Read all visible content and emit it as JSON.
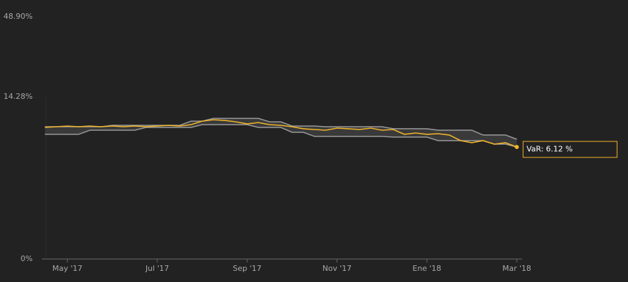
{
  "chart_data": {
    "type": "line",
    "x": [
      -0.5,
      -0.25,
      0,
      0.25,
      0.5,
      0.75,
      1,
      1.25,
      1.5,
      1.75,
      2,
      2.25,
      2.5,
      2.75,
      3,
      3.25,
      3.5,
      3.75,
      4,
      4.25,
      4.5,
      4.75,
      5,
      5.25,
      5.5,
      5.75,
      6,
      6.25,
      6.5,
      6.75,
      7,
      7.25,
      7.5,
      7.75,
      8,
      8.25,
      8.5,
      8.75,
      9,
      9.25,
      9.5,
      9.75,
      10
    ],
    "xlim": [
      -0.57,
      10.12
    ],
    "xticks": [
      {
        "value": 0,
        "label": "May '17"
      },
      {
        "value": 2,
        "label": "Jul '17"
      },
      {
        "value": 4,
        "label": "Sep '17"
      },
      {
        "value": 6,
        "label": "Nov '17"
      },
      {
        "value": 8,
        "label": "Ene '18"
      },
      {
        "value": 10,
        "label": "Mar '18"
      }
    ],
    "ylim": [
      0,
      48.9
    ],
    "yticks": [
      {
        "value": 0,
        "label": "0%"
      },
      {
        "value": 14.28,
        "label": "14.28%"
      },
      {
        "value": 48.9,
        "label": "48.90%"
      }
    ],
    "yscale": "log",
    "band_fill": "#3a3a3a",
    "series": [
      {
        "color": "#f0b429",
        "values": [
          8.62,
          8.72,
          8.82,
          8.72,
          8.82,
          8.72,
          8.82,
          8.72,
          8.82,
          8.72,
          8.82,
          8.93,
          8.82,
          9.03,
          9.58,
          9.81,
          9.7,
          9.47,
          9.15,
          9.36,
          9.03,
          8.93,
          8.72,
          8.42,
          8.32,
          8.22,
          8.52,
          8.42,
          8.32,
          8.52,
          8.22,
          8.32,
          7.65,
          7.83,
          7.65,
          7.74,
          7.56,
          6.85,
          6.61,
          6.85,
          6.44,
          6.61,
          6.12
        ]
      },
      {
        "color": "#9a9a9a",
        "values": [
          8.72,
          8.72,
          8.72,
          8.72,
          8.72,
          8.72,
          8.93,
          8.93,
          8.93,
          8.93,
          8.93,
          8.93,
          8.93,
          9.58,
          9.58,
          10.04,
          10.04,
          10.04,
          10.04,
          10.04,
          9.47,
          9.47,
          8.82,
          8.82,
          8.82,
          8.72,
          8.72,
          8.72,
          8.72,
          8.72,
          8.72,
          8.42,
          8.42,
          8.42,
          8.42,
          8.22,
          8.22,
          8.22,
          8.22,
          7.56,
          7.56,
          7.56,
          7.02
        ]
      },
      {
        "color": "#9a9a9a",
        "values": [
          7.65,
          7.65,
          7.65,
          7.65,
          8.22,
          8.22,
          8.22,
          8.22,
          8.22,
          8.62,
          8.62,
          8.62,
          8.62,
          8.62,
          9.03,
          9.03,
          9.03,
          9.03,
          9.03,
          8.62,
          8.62,
          8.62,
          7.93,
          7.93,
          7.38,
          7.38,
          7.38,
          7.38,
          7.38,
          7.38,
          7.38,
          7.29,
          7.29,
          7.29,
          7.29,
          6.85,
          6.85,
          6.85,
          6.85,
          6.85,
          6.44,
          6.44,
          6.12
        ]
      }
    ],
    "tooltip": {
      "label": "VaR: 6.12 %"
    }
  }
}
